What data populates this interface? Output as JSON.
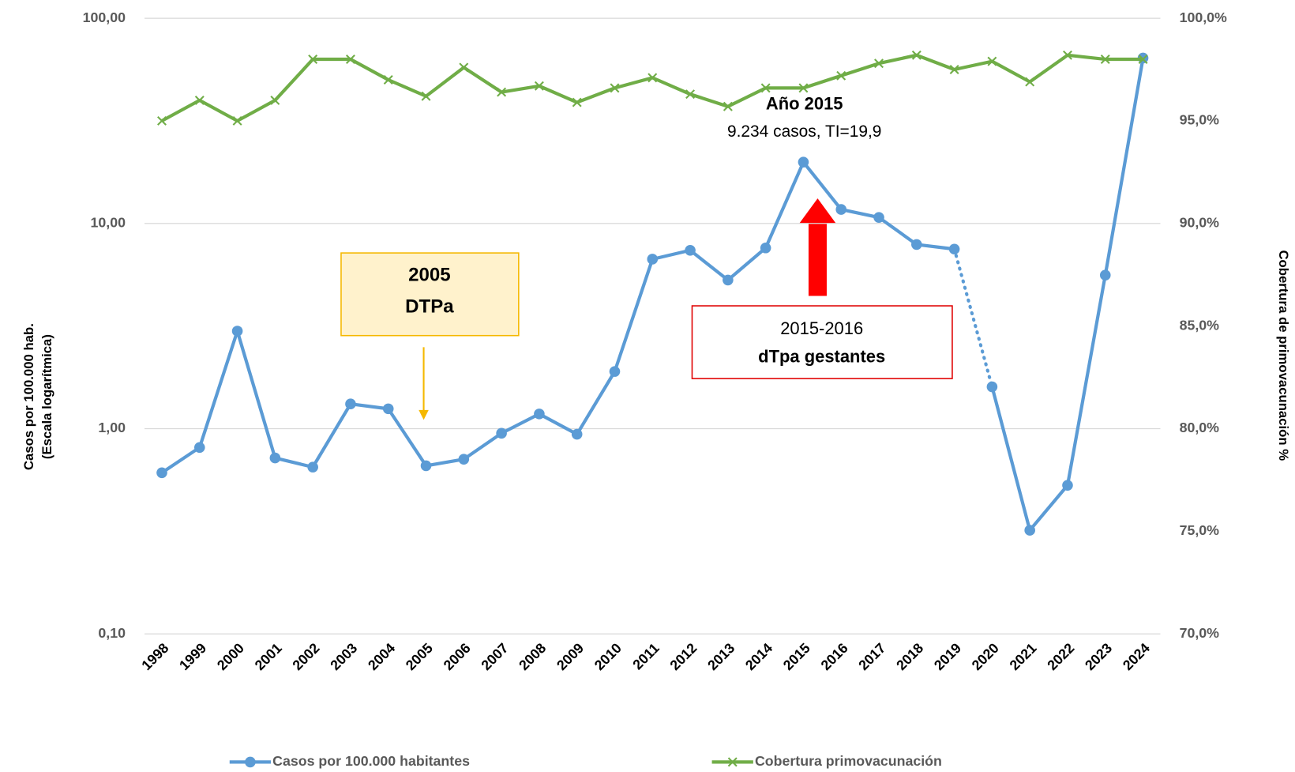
{
  "chart_data": {
    "type": "line",
    "categories": [
      "1998",
      "1999",
      "2000",
      "2001",
      "2002",
      "2003",
      "2004",
      "2005",
      "2006",
      "2007",
      "2008",
      "2009",
      "2010",
      "2011",
      "2012",
      "2013",
      "2014",
      "2015",
      "2016",
      "2017",
      "2018",
      "2019",
      "2020",
      "2021",
      "2022",
      "2023",
      "2024"
    ],
    "series": [
      {
        "name": "Casos por 100.000 habitantes",
        "color": "#5b9bd5",
        "marker": "circle",
        "dotted_segments": [
          21
        ],
        "values": [
          0.61,
          0.81,
          2.99,
          0.72,
          0.65,
          1.32,
          1.25,
          0.66,
          0.71,
          0.95,
          1.18,
          0.94,
          1.9,
          6.7,
          7.4,
          5.3,
          7.6,
          19.9,
          11.7,
          10.7,
          7.9,
          7.5,
          1.6,
          0.32,
          0.53,
          5.6,
          64
        ]
      },
      {
        "name": "Cobertura primovacunación",
        "color": "#70ad47",
        "marker": "x",
        "axis": "y2",
        "values": [
          95.0,
          96.0,
          95.0,
          96.0,
          98.0,
          98.0,
          97.0,
          96.2,
          97.6,
          96.4,
          96.7,
          95.9,
          96.6,
          97.1,
          96.3,
          95.7,
          96.6,
          96.6,
          97.2,
          97.8,
          98.2,
          97.5,
          97.9,
          96.9,
          98.2,
          98.0,
          98.0
        ]
      }
    ],
    "y_label": [
      "Casos por 100.000 hab.",
      "(Escala logarítmica)"
    ],
    "y2_label": "Cobertura de primovacunación %",
    "ylog": true,
    "ylim": [
      0.1,
      100
    ],
    "yticks": [
      {
        "value": 0.1,
        "label": "0,10"
      },
      {
        "value": 1,
        "label": "1,00"
      },
      {
        "value": 10,
        "label": "10,00"
      },
      {
        "value": 100,
        "label": "100,00"
      }
    ],
    "y2lim": [
      70,
      100
    ],
    "y2ticks": [
      {
        "value": 70,
        "label": "70,0%"
      },
      {
        "value": 75,
        "label": "75,0%"
      },
      {
        "value": 80,
        "label": "80,0%"
      },
      {
        "value": 85,
        "label": "85,0%"
      },
      {
        "value": 90,
        "label": "90,0%"
      },
      {
        "value": 95,
        "label": "95,0%"
      },
      {
        "value": 100,
        "label": "100,0%"
      }
    ],
    "grid": true,
    "legend": "bottom",
    "annotations": [
      {
        "lines": [
          "2005",
          "DTPa"
        ]
      },
      {
        "lines": [
          "Año 2015",
          "9.234 casos, TI=19,9"
        ]
      },
      {
        "lines": [
          "2015-2016",
          "dTpa gestantes"
        ]
      }
    ]
  }
}
